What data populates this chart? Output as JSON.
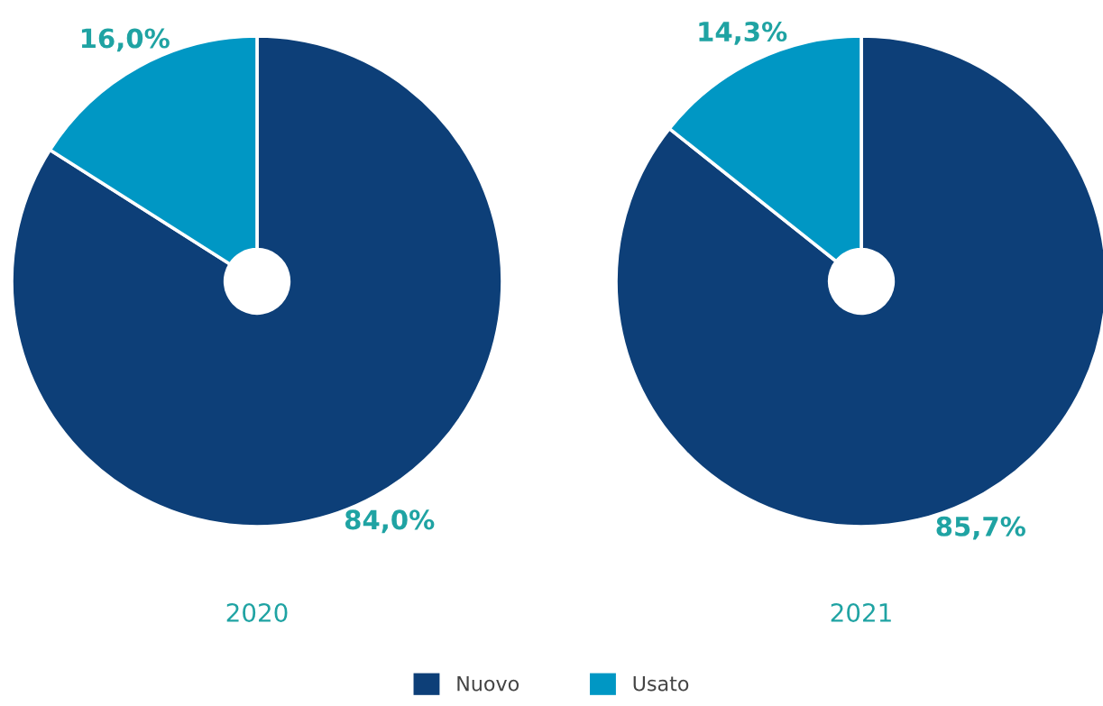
{
  "chart_data": [
    {
      "type": "donut",
      "title": "2020",
      "categories": [
        "Nuovo",
        "Usato"
      ],
      "values": [
        84.0,
        16.0
      ],
      "value_labels": [
        "84,0%",
        "16,0%"
      ],
      "colors": [
        "#0d3f78",
        "#0097c4"
      ],
      "legend": "bottom"
    },
    {
      "type": "donut",
      "title": "2021",
      "categories": [
        null,
        null
      ],
      "values": [
        85.7,
        14.3
      ],
      "value_labels": [
        "85,7%",
        "14,3%"
      ],
      "colors": [
        "#0d3f78",
        "#0097c4"
      ]
    }
  ]
}
